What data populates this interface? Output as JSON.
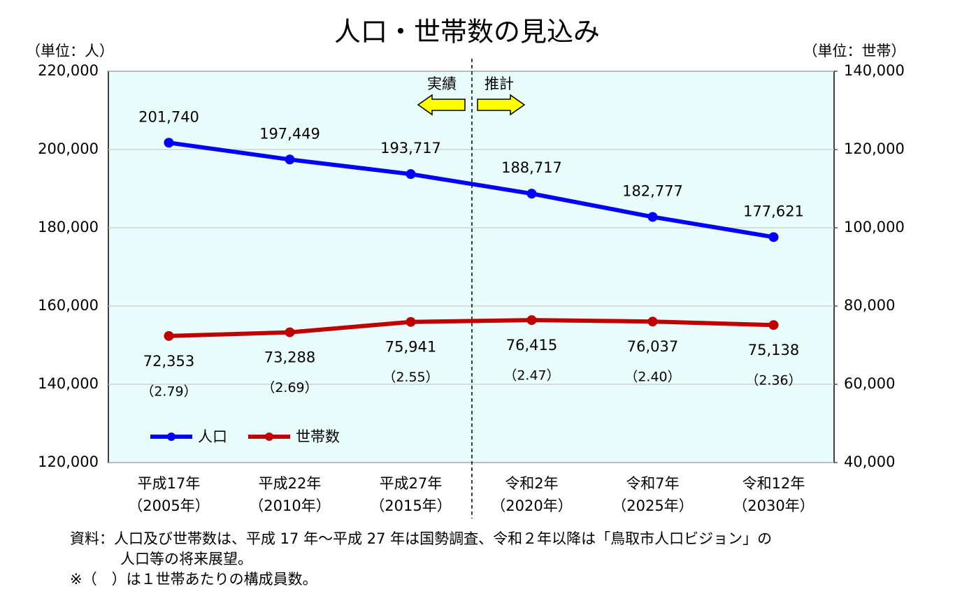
{
  "chart_data": {
    "type": "line",
    "title": "人口・世帯数の見込み",
    "y_unit": "（単位：人）",
    "y2_unit": "（単位：世帯）",
    "annotations": {
      "actual": "実績",
      "projection": "推計"
    },
    "categories": [
      [
        "平成17年",
        "（2005年）"
      ],
      [
        "平成22年",
        "（2010年）"
      ],
      [
        "平成27年",
        "（2015年）"
      ],
      [
        "令和2年",
        "（2020年）"
      ],
      [
        "令和7年",
        "（2025年）"
      ],
      [
        "令和12年",
        "（2030年）"
      ]
    ],
    "series": [
      {
        "name": "人口",
        "color": "#0000ff",
        "axis": "y",
        "values": [
          201740,
          197449,
          193717,
          188717,
          182777,
          177621
        ],
        "value_labels": [
          "201,740",
          "197,449",
          "193,717",
          "188,717",
          "182,777",
          "177,621"
        ]
      },
      {
        "name": "世帯数",
        "color": "#c00000",
        "axis": "y2",
        "values": [
          72353,
          73288,
          75941,
          76415,
          76037,
          75138
        ],
        "value_labels": [
          "72,353",
          "73,288",
          "75,941",
          "76,415",
          "76,037",
          "75,138"
        ]
      }
    ],
    "persons_per_household": {
      "values": [
        2.79,
        2.69,
        2.55,
        2.47,
        2.4,
        2.36
      ],
      "value_labels": [
        "（2.79）",
        "（2.69）",
        "（2.55）",
        "（2.47）",
        "（2.40）",
        "（2.36）"
      ]
    },
    "ylim": [
      120000,
      220000
    ],
    "yticks": [
      {
        "value": 120000,
        "label": "120,000"
      },
      {
        "value": 140000,
        "label": "140,000"
      },
      {
        "value": 160000,
        "label": "160,000"
      },
      {
        "value": 180000,
        "label": "180,000"
      },
      {
        "value": 200000,
        "label": "200,000"
      },
      {
        "value": 220000,
        "label": "220,000"
      }
    ],
    "y2lim": [
      40000,
      140000
    ],
    "y2ticks": [
      {
        "value": 40000,
        "label": "40,000"
      },
      {
        "value": 60000,
        "label": "60,000"
      },
      {
        "value": 80000,
        "label": "80,000"
      },
      {
        "value": 100000,
        "label": "100,000"
      },
      {
        "value": 120000,
        "label": "120,000"
      },
      {
        "value": 140000,
        "label": "140,000"
      }
    ],
    "grid": true,
    "background": "#e9fdfd",
    "notes": [
      "資料：人口及び世帯数は、平成 17 年～平成 27 年は国勢調査、令和２年以降は「鳥取市人口ビジョン」の",
      "人口等の将来展望。",
      "※（　）は１世帯あたりの構成員数。"
    ]
  }
}
